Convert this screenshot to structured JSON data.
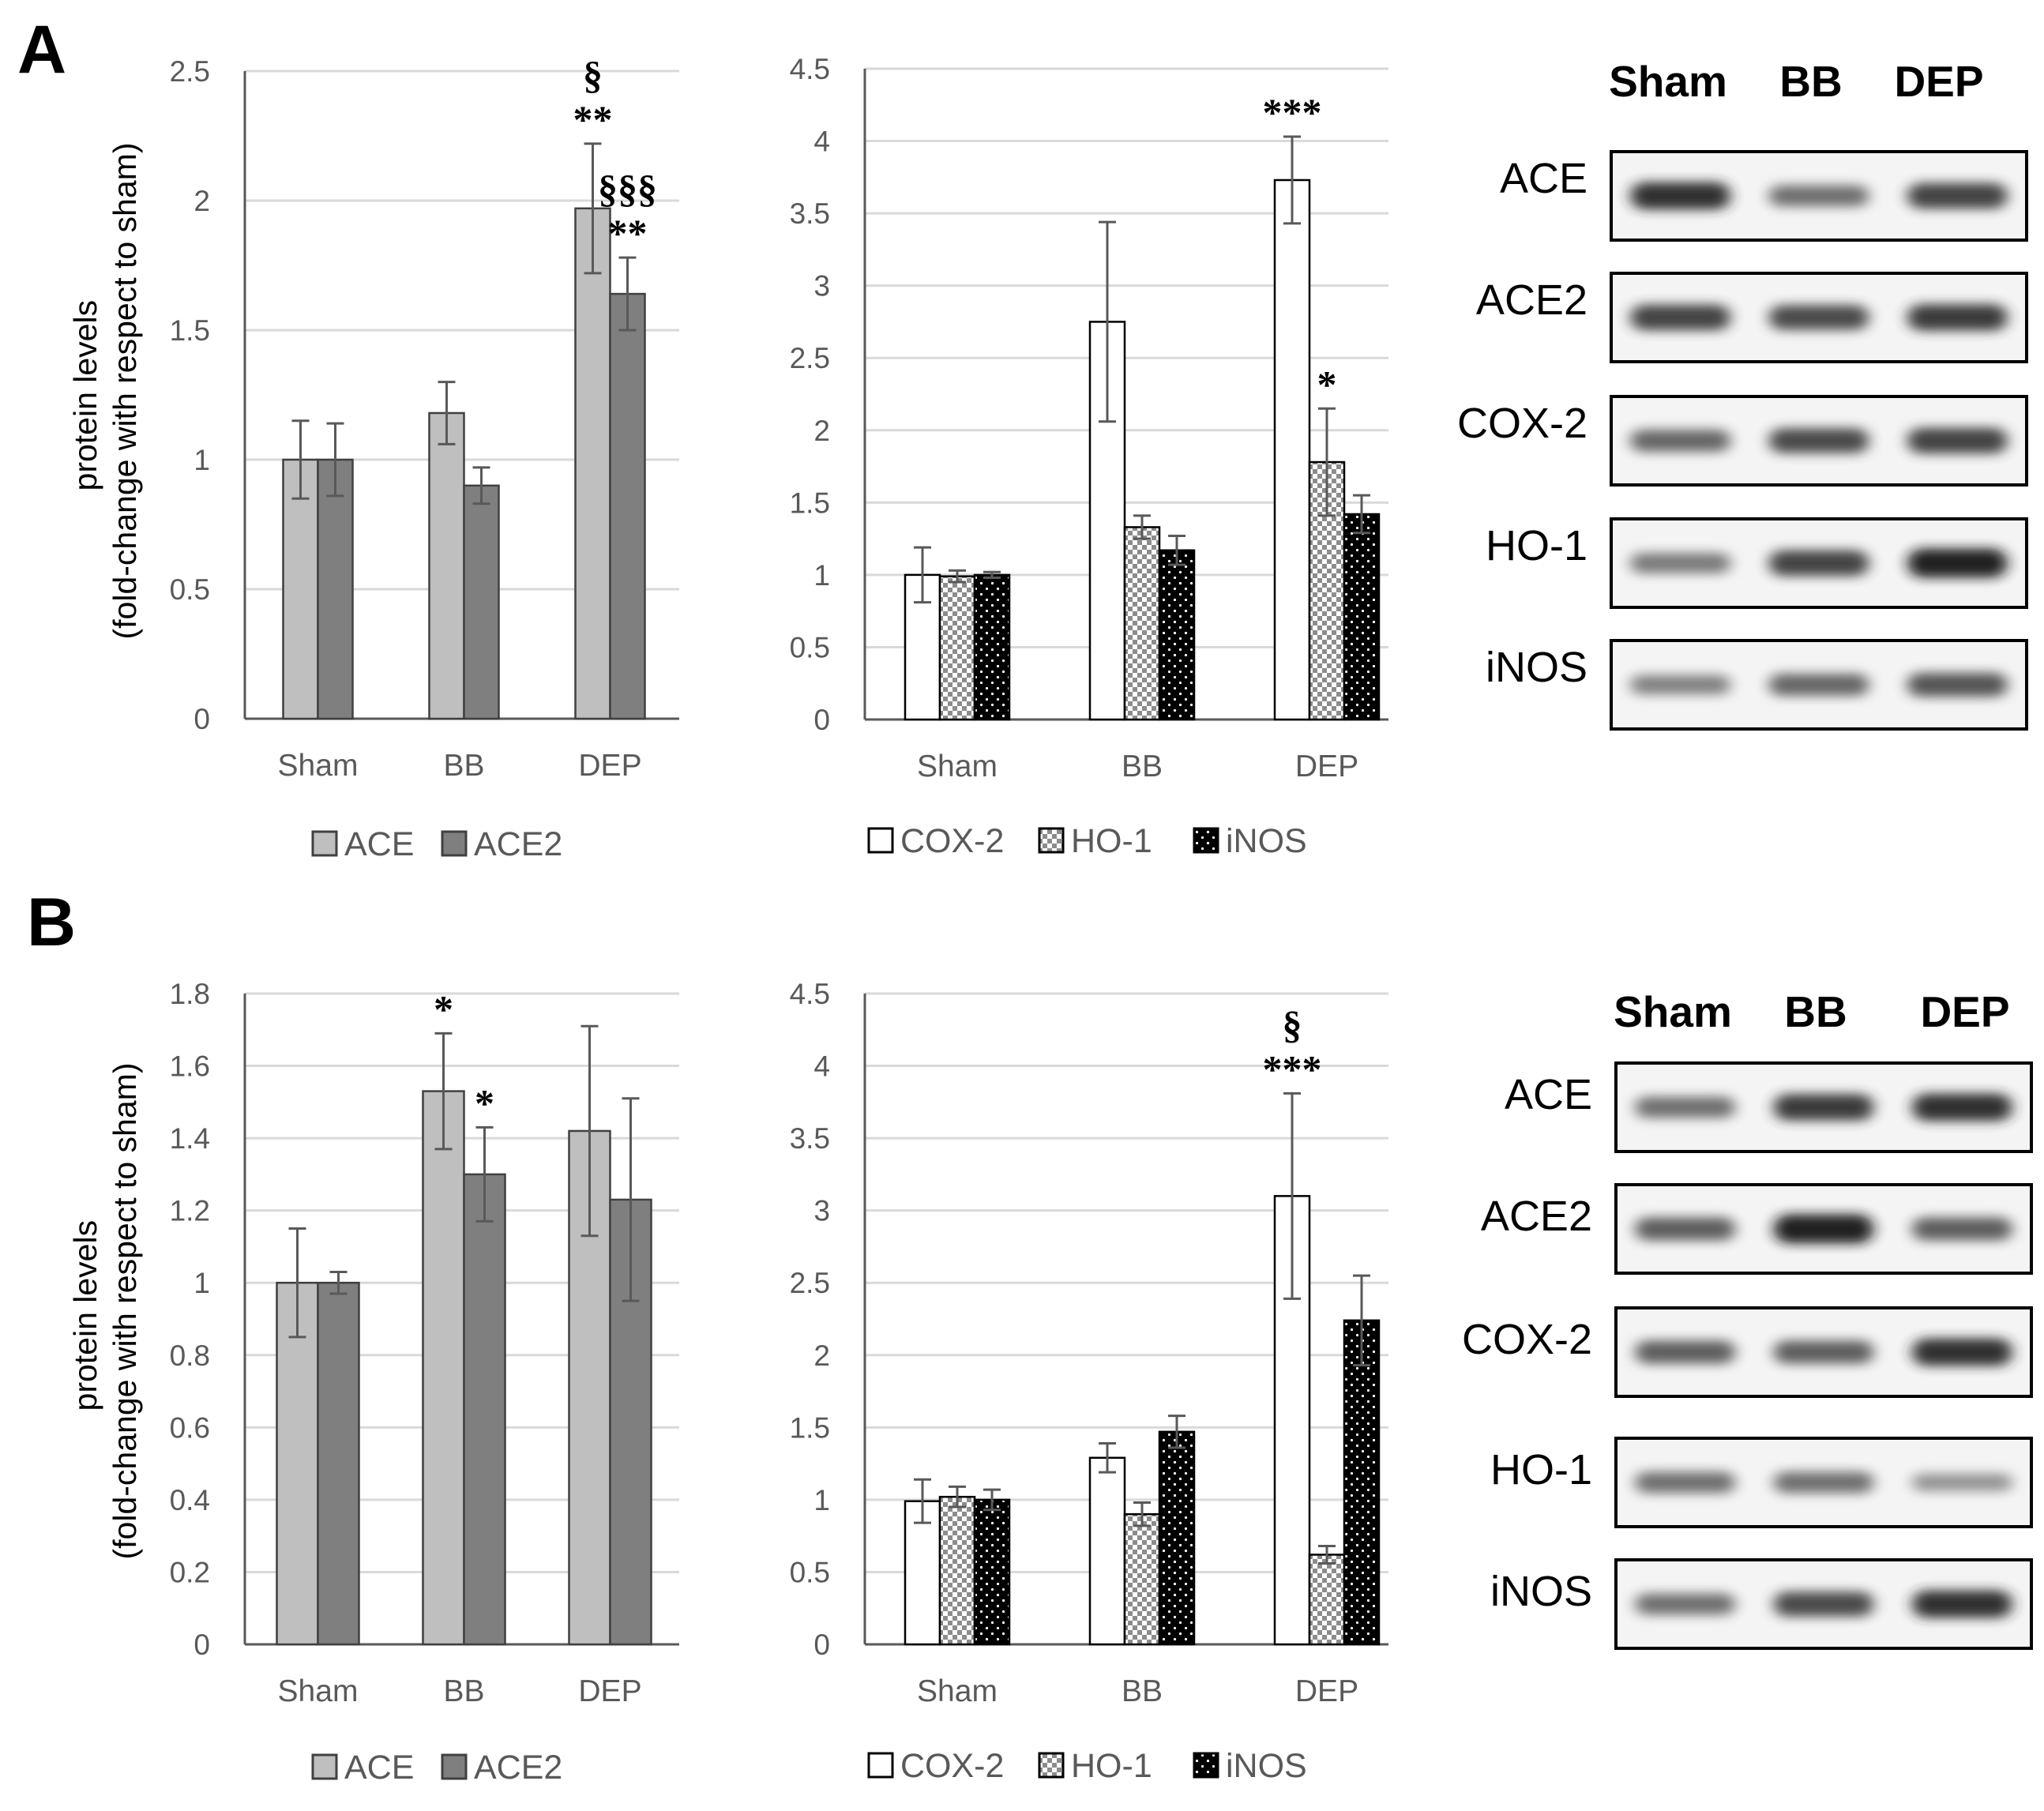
{
  "panel_labels": [
    "A",
    "B"
  ],
  "y_axis_label": [
    "protein levels",
    "(fold-change with respect to sham)"
  ],
  "colors": {
    "ACE": "#bfbfbf",
    "ACE2": "#7f7f7f",
    "COX-2": "#ffffff",
    "HO-1": "pattern-checker-gray",
    "iNOS": "pattern-dots-black",
    "axis": "#595959",
    "grid": "#d9d9d9",
    "error_bar": "#595959"
  },
  "chart_data": [
    {
      "id": "A-left",
      "type": "bar",
      "categories": [
        "Sham",
        "BB",
        "DEP"
      ],
      "series": [
        {
          "name": "ACE",
          "values": [
            1.0,
            1.18,
            1.97
          ],
          "errors": [
            0.15,
            0.12,
            0.25
          ]
        },
        {
          "name": "ACE2",
          "values": [
            1.0,
            0.9,
            1.64
          ],
          "errors": [
            0.14,
            0.07,
            0.14
          ]
        }
      ],
      "ylim": [
        0,
        2.5
      ],
      "yticks": [
        "0",
        "0.5",
        "1",
        "1.5",
        "2",
        "2.5"
      ],
      "grid": true,
      "legend": "bottom",
      "annotations": [
        {
          "category": "DEP",
          "series": "ACE",
          "lines": [
            "§",
            "**"
          ]
        },
        {
          "category": "DEP",
          "series": "ACE2",
          "lines": [
            "§§§",
            "**"
          ]
        }
      ]
    },
    {
      "id": "A-middle",
      "type": "bar",
      "categories": [
        "Sham",
        "BB",
        "DEP"
      ],
      "series": [
        {
          "name": "COX-2",
          "values": [
            1.0,
            2.75,
            3.73
          ],
          "errors": [
            0.19,
            0.69,
            0.3
          ]
        },
        {
          "name": "HO-1",
          "values": [
            0.99,
            1.33,
            1.78
          ],
          "errors": [
            0.04,
            0.08,
            0.37
          ]
        },
        {
          "name": "iNOS",
          "values": [
            1.0,
            1.17,
            1.42
          ],
          "errors": [
            0.02,
            0.1,
            0.13
          ]
        }
      ],
      "ylim": [
        0,
        4.5
      ],
      "yticks": [
        "0",
        "0.5",
        "1",
        "1.5",
        "2",
        "2.5",
        "3",
        "3.5",
        "4",
        "4.5"
      ],
      "grid": true,
      "legend": "bottom",
      "annotations": [
        {
          "category": "DEP",
          "series": "COX-2",
          "lines": [
            "***"
          ]
        },
        {
          "category": "DEP",
          "series": "HO-1",
          "lines": [
            "*"
          ]
        }
      ]
    },
    {
      "id": "B-left",
      "type": "bar",
      "categories": [
        "Sham",
        "BB",
        "DEP"
      ],
      "series": [
        {
          "name": "ACE",
          "values": [
            1.0,
            1.53,
            1.42
          ],
          "errors": [
            0.15,
            0.16,
            0.29
          ]
        },
        {
          "name": "ACE2",
          "values": [
            1.0,
            1.3,
            1.23
          ],
          "errors": [
            0.03,
            0.13,
            0.28
          ]
        }
      ],
      "ylim": [
        0,
        1.8
      ],
      "yticks": [
        "0",
        "0.2",
        "0.4",
        "0.6",
        "0.8",
        "1",
        "1.2",
        "1.4",
        "1.6",
        "1.8"
      ],
      "grid": true,
      "legend": "bottom",
      "annotations": [
        {
          "category": "BB",
          "series": "ACE",
          "lines": [
            "*"
          ]
        },
        {
          "category": "BB",
          "series": "ACE2",
          "lines": [
            "*"
          ]
        }
      ]
    },
    {
      "id": "B-middle",
      "type": "bar",
      "categories": [
        "Sham",
        "BB",
        "DEP"
      ],
      "series": [
        {
          "name": "COX-2",
          "values": [
            0.99,
            1.29,
            3.1
          ],
          "errors": [
            0.15,
            0.1,
            0.71
          ]
        },
        {
          "name": "HO-1",
          "values": [
            1.02,
            0.9,
            0.62
          ],
          "errors": [
            0.07,
            0.08,
            0.06
          ]
        },
        {
          "name": "iNOS",
          "values": [
            1.0,
            1.47,
            2.24
          ],
          "errors": [
            0.07,
            0.11,
            0.31
          ]
        }
      ],
      "ylim": [
        0,
        4.5
      ],
      "yticks": [
        "0",
        "0.5",
        "1",
        "1.5",
        "2",
        "2.5",
        "3",
        "3.5",
        "4",
        "4.5"
      ],
      "grid": true,
      "legend": "bottom",
      "annotations": [
        {
          "category": "DEP",
          "series": "COX-2",
          "lines": [
            "§",
            "***"
          ]
        }
      ]
    }
  ],
  "blots": [
    {
      "id": "A-blot",
      "column_headers": [
        "Sham",
        "BB",
        "DEP"
      ],
      "rows": [
        {
          "label": "ACE",
          "band_intensity": [
            0.85,
            0.5,
            0.75
          ]
        },
        {
          "label": "ACE2",
          "band_intensity": [
            0.75,
            0.7,
            0.8
          ]
        },
        {
          "label": "COX-2",
          "band_intensity": [
            0.55,
            0.7,
            0.75
          ]
        },
        {
          "label": "HO-1",
          "band_intensity": [
            0.45,
            0.75,
            0.95
          ]
        },
        {
          "label": "iNOS",
          "band_intensity": [
            0.4,
            0.55,
            0.65
          ]
        }
      ]
    },
    {
      "id": "B-blot",
      "column_headers": [
        "Sham",
        "BB",
        "DEP"
      ],
      "rows": [
        {
          "label": "ACE",
          "band_intensity": [
            0.5,
            0.8,
            0.85
          ]
        },
        {
          "label": "ACE2",
          "band_intensity": [
            0.6,
            0.95,
            0.6
          ]
        },
        {
          "label": "COX-2",
          "band_intensity": [
            0.6,
            0.6,
            0.85
          ]
        },
        {
          "label": "HO-1",
          "band_intensity": [
            0.5,
            0.5,
            0.3
          ]
        },
        {
          "label": "iNOS",
          "band_intensity": [
            0.5,
            0.7,
            0.85
          ]
        }
      ]
    }
  ]
}
